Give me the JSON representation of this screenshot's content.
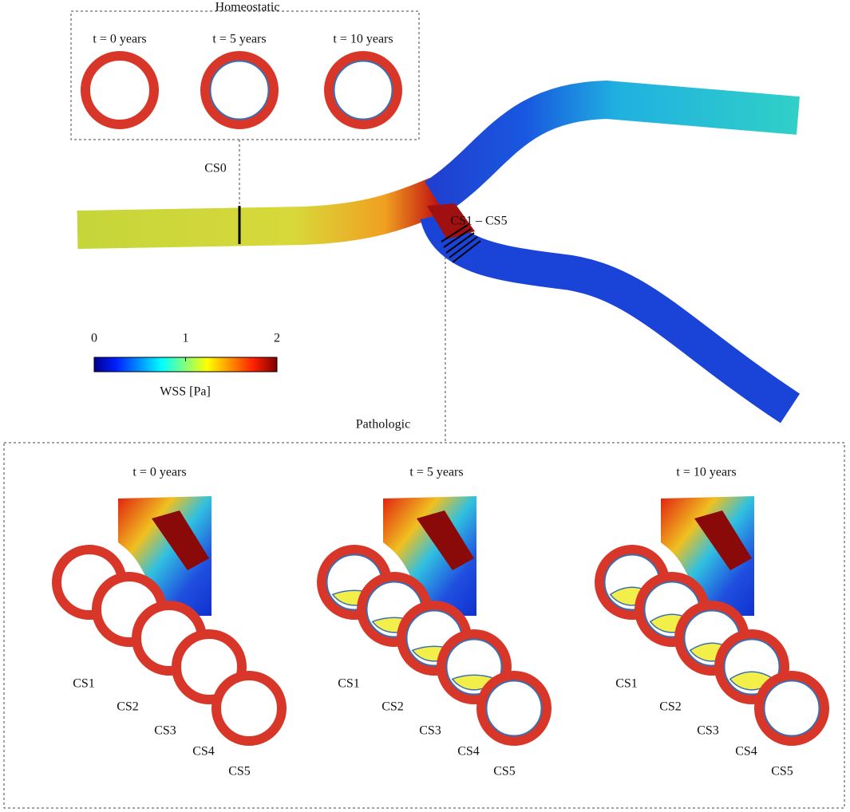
{
  "homeostatic": {
    "title": "Homeostatic",
    "panels": [
      "t = 0 years",
      "t = 5 years",
      "t = 10 years"
    ]
  },
  "vessel": {
    "cs0": "CS0",
    "cs1_cs5": "CS1 – CS5"
  },
  "colorbar": {
    "label": "WSS [Pa]",
    "range": [
      0,
      2
    ],
    "ticks": [
      0,
      1,
      2
    ]
  },
  "pathologic": {
    "title": "Pathologic",
    "panels": [
      {
        "title": "t = 0 years",
        "sections": [
          "CS1",
          "CS2",
          "CS3",
          "CS4",
          "CS5"
        ]
      },
      {
        "title": "t = 5 years",
        "sections": [
          "CS1",
          "CS2",
          "CS3",
          "CS4",
          "CS5"
        ]
      },
      {
        "title": "t = 10 years",
        "sections": [
          "CS1",
          "CS2",
          "CS3",
          "CS4",
          "CS5"
        ]
      }
    ]
  }
}
